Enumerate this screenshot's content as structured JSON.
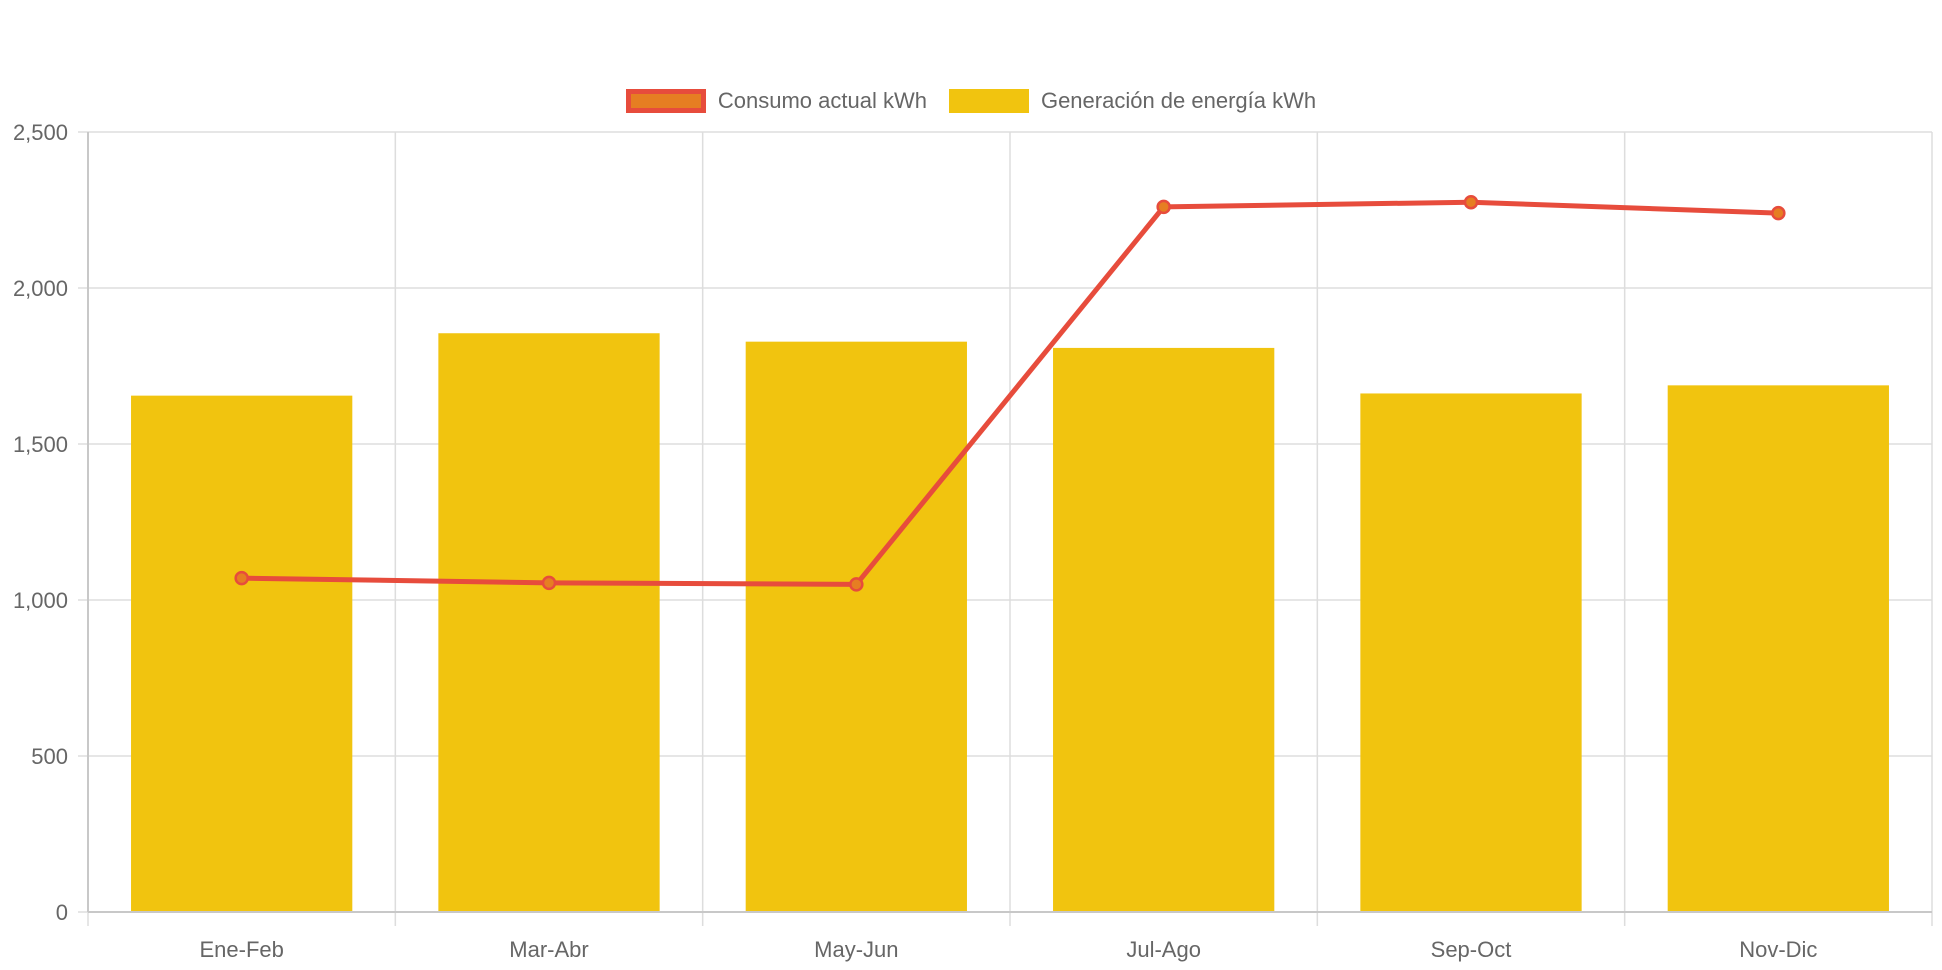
{
  "legend": {
    "consumo_label": "Consumo actual kWh",
    "generacion_label": "Generación de energía kWh"
  },
  "colors": {
    "bar": "#f1c40f",
    "line": "#e74c3c",
    "point_fill": "#e67e22",
    "grid": "#dddddd",
    "axis_text": "#666666"
  },
  "chart_data": {
    "type": "bar",
    "title": "",
    "xlabel": "",
    "ylabel": "",
    "ylim": [
      0,
      2500
    ],
    "yticks": [
      0,
      500,
      1000,
      1500,
      2000,
      2500
    ],
    "ytick_labels": [
      "0",
      "500",
      "1,000",
      "1,500",
      "2,000",
      "2,500"
    ],
    "categories": [
      "Ene-Feb",
      "Mar-Abr",
      "May-Jun",
      "Jul-Ago",
      "Sep-Oct",
      "Nov-Dic"
    ],
    "series": [
      {
        "name": "Generación de energía kWh",
        "type": "bar",
        "values": [
          1655,
          1855,
          1828,
          1808,
          1662,
          1688
        ]
      },
      {
        "name": "Consumo actual kWh",
        "type": "line",
        "values": [
          1070,
          1055,
          1050,
          2260,
          2275,
          2240
        ]
      }
    ],
    "grid": true,
    "legend_position": "top-center"
  }
}
